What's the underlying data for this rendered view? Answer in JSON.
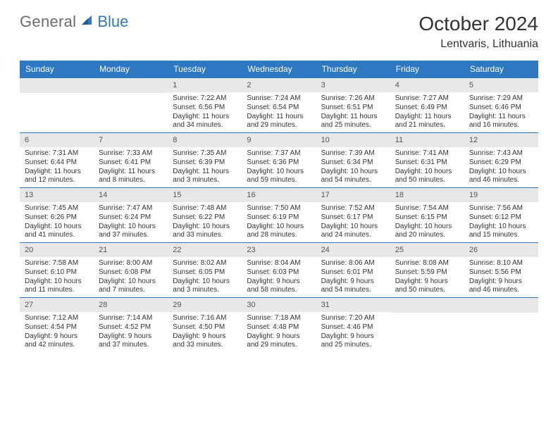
{
  "logo": {
    "general": "General",
    "blue": "Blue"
  },
  "title": {
    "month": "October 2024",
    "location": "Lentvaris, Lithuania"
  },
  "colors": {
    "accent": "#2e78c1",
    "daynum_bg": "#e8e8e8",
    "text": "#333333"
  },
  "weekdays": [
    "Sunday",
    "Monday",
    "Tuesday",
    "Wednesday",
    "Thursday",
    "Friday",
    "Saturday"
  ],
  "weeks": [
    [
      null,
      null,
      {
        "n": "1",
        "sr": "7:22 AM",
        "ss": "6:56 PM",
        "dl": "11 hours and 34 minutes."
      },
      {
        "n": "2",
        "sr": "7:24 AM",
        "ss": "6:54 PM",
        "dl": "11 hours and 29 minutes."
      },
      {
        "n": "3",
        "sr": "7:26 AM",
        "ss": "6:51 PM",
        "dl": "11 hours and 25 minutes."
      },
      {
        "n": "4",
        "sr": "7:27 AM",
        "ss": "6:49 PM",
        "dl": "11 hours and 21 minutes."
      },
      {
        "n": "5",
        "sr": "7:29 AM",
        "ss": "6:46 PM",
        "dl": "11 hours and 16 minutes."
      }
    ],
    [
      {
        "n": "6",
        "sr": "7:31 AM",
        "ss": "6:44 PM",
        "dl": "11 hours and 12 minutes."
      },
      {
        "n": "7",
        "sr": "7:33 AM",
        "ss": "6:41 PM",
        "dl": "11 hours and 8 minutes."
      },
      {
        "n": "8",
        "sr": "7:35 AM",
        "ss": "6:39 PM",
        "dl": "11 hours and 3 minutes."
      },
      {
        "n": "9",
        "sr": "7:37 AM",
        "ss": "6:36 PM",
        "dl": "10 hours and 59 minutes."
      },
      {
        "n": "10",
        "sr": "7:39 AM",
        "ss": "6:34 PM",
        "dl": "10 hours and 54 minutes."
      },
      {
        "n": "11",
        "sr": "7:41 AM",
        "ss": "6:31 PM",
        "dl": "10 hours and 50 minutes."
      },
      {
        "n": "12",
        "sr": "7:43 AM",
        "ss": "6:29 PM",
        "dl": "10 hours and 46 minutes."
      }
    ],
    [
      {
        "n": "13",
        "sr": "7:45 AM",
        "ss": "6:26 PM",
        "dl": "10 hours and 41 minutes."
      },
      {
        "n": "14",
        "sr": "7:47 AM",
        "ss": "6:24 PM",
        "dl": "10 hours and 37 minutes."
      },
      {
        "n": "15",
        "sr": "7:48 AM",
        "ss": "6:22 PM",
        "dl": "10 hours and 33 minutes."
      },
      {
        "n": "16",
        "sr": "7:50 AM",
        "ss": "6:19 PM",
        "dl": "10 hours and 28 minutes."
      },
      {
        "n": "17",
        "sr": "7:52 AM",
        "ss": "6:17 PM",
        "dl": "10 hours and 24 minutes."
      },
      {
        "n": "18",
        "sr": "7:54 AM",
        "ss": "6:15 PM",
        "dl": "10 hours and 20 minutes."
      },
      {
        "n": "19",
        "sr": "7:56 AM",
        "ss": "6:12 PM",
        "dl": "10 hours and 15 minutes."
      }
    ],
    [
      {
        "n": "20",
        "sr": "7:58 AM",
        "ss": "6:10 PM",
        "dl": "10 hours and 11 minutes."
      },
      {
        "n": "21",
        "sr": "8:00 AM",
        "ss": "6:08 PM",
        "dl": "10 hours and 7 minutes."
      },
      {
        "n": "22",
        "sr": "8:02 AM",
        "ss": "6:05 PM",
        "dl": "10 hours and 3 minutes."
      },
      {
        "n": "23",
        "sr": "8:04 AM",
        "ss": "6:03 PM",
        "dl": "9 hours and 58 minutes."
      },
      {
        "n": "24",
        "sr": "8:06 AM",
        "ss": "6:01 PM",
        "dl": "9 hours and 54 minutes."
      },
      {
        "n": "25",
        "sr": "8:08 AM",
        "ss": "5:59 PM",
        "dl": "9 hours and 50 minutes."
      },
      {
        "n": "26",
        "sr": "8:10 AM",
        "ss": "5:56 PM",
        "dl": "9 hours and 46 minutes."
      }
    ],
    [
      {
        "n": "27",
        "sr": "7:12 AM",
        "ss": "4:54 PM",
        "dl": "9 hours and 42 minutes."
      },
      {
        "n": "28",
        "sr": "7:14 AM",
        "ss": "4:52 PM",
        "dl": "9 hours and 37 minutes."
      },
      {
        "n": "29",
        "sr": "7:16 AM",
        "ss": "4:50 PM",
        "dl": "9 hours and 33 minutes."
      },
      {
        "n": "30",
        "sr": "7:18 AM",
        "ss": "4:48 PM",
        "dl": "9 hours and 29 minutes."
      },
      {
        "n": "31",
        "sr": "7:20 AM",
        "ss": "4:46 PM",
        "dl": "9 hours and 25 minutes."
      },
      null,
      null
    ]
  ],
  "labels": {
    "sunrise": "Sunrise: ",
    "sunset": "Sunset: ",
    "daylight": "Daylight: "
  }
}
